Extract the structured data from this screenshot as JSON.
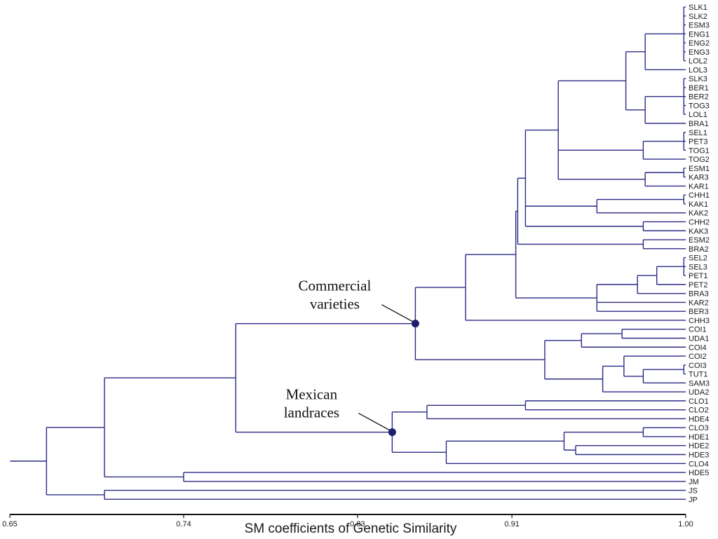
{
  "chart_data": {
    "type": "dendrogram",
    "xlabel": "SM coefficients of Genetic Similarity",
    "xlim": [
      0.65,
      1.0
    ],
    "xticks": [
      "0.65",
      "0.74",
      "0.83",
      "0.91",
      "1.00"
    ],
    "leaves": [
      "SLK1",
      "SLK2",
      "ESM3",
      "ENG1",
      "ENG2",
      "ENG3",
      "LOL2",
      "LOL3",
      "SLK3",
      "BER1",
      "BER2",
      "TOG3",
      "LOL1",
      "BRA1",
      "SEL1",
      "PET3",
      "TOG1",
      "TOG2",
      "ESM1",
      "KAR3",
      "KAR1",
      "CHH1",
      "KAK1",
      "KAK2",
      "CHH2",
      "KAK3",
      "ESM2",
      "BRA2",
      "SEL2",
      "SEL3",
      "PET1",
      "PET2",
      "BRA3",
      "KAR2",
      "BER3",
      "CHH3",
      "COI1",
      "UDA1",
      "COI4",
      "COI2",
      "COI3",
      "TUT1",
      "SAM3",
      "UDA2",
      "CLO1",
      "CLO2",
      "HDE4",
      "CLO3",
      "HDE1",
      "HDE2",
      "HDE3",
      "CLO4",
      "HDE5",
      "JM",
      "JS",
      "JP"
    ],
    "tree": {
      "s": 0.669,
      "c": [
        {
          "s": 0.699,
          "c": [
            {
              "s": 0.767,
              "c": [
                {
                  "s": 0.86,
                  "id": "commercial",
                  "c": [
                    {
                      "s": 0.886,
                      "c": [
                        {
                          "s": 0.912,
                          "c": [
                            {
                              "s": 0.913,
                              "c": [
                                {
                                  "s": 0.917,
                                  "c": [
                                    {
                                      "s": 0.934,
                                      "c": [
                                        {
                                          "s": 0.969,
                                          "c": [
                                            {
                                              "s": 0.979,
                                              "c": [
                                                {
                                                  "s": 0.999,
                                                  "c": [
                                                    "SLK1",
                                                    "SLK2",
                                                    "ESM3",
                                                    "ENG1",
                                                    "ENG2",
                                                    "ENG3",
                                                    "LOL2"
                                                  ]
                                                },
                                                "LOL3"
                                              ]
                                            },
                                            {
                                              "s": 0.979,
                                              "c": [
                                                {
                                                  "s": 0.999,
                                                  "c": [
                                                    "SLK3",
                                                    "BER1",
                                                    "BER2",
                                                    "TOG3",
                                                    "LOL1"
                                                  ]
                                                },
                                                "BRA1"
                                              ]
                                            }
                                          ]
                                        },
                                        {
                                          "s": 0.978,
                                          "c": [
                                            {
                                              "s": 0.999,
                                              "c": [
                                                "SEL1",
                                                "PET3",
                                                "TOG1"
                                              ]
                                            },
                                            "TOG2"
                                          ]
                                        },
                                        {
                                          "s": 0.979,
                                          "c": [
                                            {
                                              "s": 0.999,
                                              "c": [
                                                "ESM1",
                                                "KAR3"
                                              ]
                                            },
                                            "KAR1"
                                          ]
                                        }
                                      ]
                                    },
                                    {
                                      "s": 0.954,
                                      "c": [
                                        {
                                          "s": 0.999,
                                          "c": [
                                            "CHH1",
                                            "KAK1"
                                          ]
                                        },
                                        "KAK2"
                                      ]
                                    },
                                    {
                                      "s": 0.978,
                                      "c": [
                                        "CHH2",
                                        "KAK3"
                                      ]
                                    }
                                  ]
                                },
                                {
                                  "s": 0.978,
                                  "c": [
                                    "ESM2",
                                    "BRA2"
                                  ]
                                }
                              ]
                            },
                            {
                              "s": 0.954,
                              "c": [
                                {
                                  "s": 0.975,
                                  "c": [
                                    {
                                      "s": 0.985,
                                      "c": [
                                        {
                                          "s": 0.999,
                                          "c": [
                                            "SEL2",
                                            "SEL3",
                                            "PET1"
                                          ]
                                        },
                                        "PET2"
                                      ]
                                    },
                                    "BRA3"
                                  ]
                                },
                                "KAR2",
                                "BER3"
                              ]
                            }
                          ]
                        },
                        "CHH3"
                      ]
                    },
                    {
                      "s": 0.927,
                      "c": [
                        {
                          "s": 0.946,
                          "c": [
                            {
                              "s": 0.967,
                              "c": [
                                "COI1",
                                "UDA1"
                              ]
                            },
                            "COI4"
                          ]
                        },
                        {
                          "s": 0.957,
                          "c": [
                            {
                              "s": 0.968,
                              "c": [
                                "COI2",
                                {
                                  "s": 0.978,
                                  "c": [
                                    {
                                      "s": 0.999,
                                      "c": [
                                        "COI3",
                                        "TUT1"
                                      ]
                                    },
                                    "SAM3"
                                  ]
                                }
                              ]
                            },
                            "UDA2"
                          ]
                        }
                      ]
                    }
                  ]
                },
                {
                  "s": 0.848,
                  "id": "mexican",
                  "c": [
                    {
                      "s": 0.866,
                      "c": [
                        {
                          "s": 0.917,
                          "c": [
                            "CLO1",
                            "CLO2"
                          ]
                        },
                        "HDE4"
                      ]
                    },
                    {
                      "s": 0.876,
                      "c": [
                        {
                          "s": 0.937,
                          "c": [
                            {
                              "s": 0.978,
                              "c": [
                                "CLO3",
                                "HDE1"
                              ]
                            },
                            {
                              "s": 0.943,
                              "c": [
                                "HDE2",
                                "HDE3"
                              ]
                            }
                          ]
                        },
                        "CLO4"
                      ]
                    }
                  ]
                }
              ]
            },
            {
              "s": 0.74,
              "c": [
                "HDE5",
                "JM"
              ]
            }
          ]
        },
        {
          "s": 0.699,
          "c": [
            "JS",
            "JP"
          ]
        }
      ]
    },
    "annotations": [
      {
        "node": "commercial",
        "lines": [
          "Commercial",
          "varieties"
        ]
      },
      {
        "node": "mexican",
        "lines": [
          "Mexican",
          "landraces"
        ]
      }
    ]
  }
}
